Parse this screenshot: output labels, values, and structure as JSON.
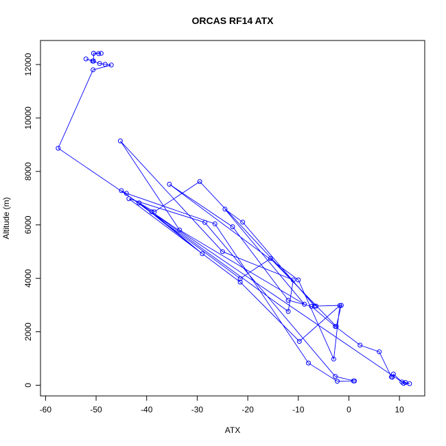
{
  "chart_data": {
    "type": "scatter",
    "title": "ORCAS RF14 ATX",
    "xlabel": "ATX",
    "ylabel": "Altitude (m)",
    "xlim": [
      -61,
      15
    ],
    "ylim": [
      -400,
      12900
    ],
    "xticks": [
      -60,
      -50,
      -40,
      -30,
      -20,
      -10,
      0,
      10
    ],
    "yticks": [
      0,
      2000,
      4000,
      6000,
      8000,
      10000,
      12000
    ],
    "grid": false,
    "legend": "none",
    "series_color": "#0000ff",
    "series": [
      {
        "x": [
          -50.5,
          -49.5,
          -49.0,
          -50.5,
          -50.5,
          -52.0,
          -50.7,
          -49.3,
          -48.2,
          -47.0,
          -50.6,
          -57.5,
          10.5,
          11.2,
          12.0,
          10.8,
          8.8,
          8.6,
          8.4,
          6.0,
          2.2,
          -2.7,
          -7.4,
          -12.0,
          -23.0,
          -35.5,
          -10.0,
          -3.0,
          -1.8,
          -9.8,
          -21.5,
          -43.5,
          -28.5,
          -2.7,
          1.1,
          0.9,
          -2.3,
          -8.0,
          -26.5,
          -44.0,
          -45.0,
          -21.5,
          -15.5,
          -2.5,
          -1.5,
          -6.5,
          -29.5,
          -38.5,
          -41.5,
          -29.0,
          -39.0,
          -12.0,
          -11.0,
          -25.0,
          -45.2,
          -33.5,
          -8.8,
          -24.5,
          -21.0,
          -6.8
        ],
        "y": [
          12420,
          12410,
          12420,
          12420,
          12130,
          12210,
          12130,
          12040,
          12010,
          11980,
          11800,
          8870,
          120,
          100,
          60,
          70,
          420,
          300,
          310,
          1250,
          1500,
          2200,
          2950,
          3180,
          5930,
          7520,
          3940,
          980,
          2980,
          1640,
          3860,
          6980,
          6090,
          330,
          160,
          160,
          150,
          830,
          6040,
          7180,
          7280,
          3990,
          4740,
          2200,
          2990,
          2960,
          7620,
          6490,
          6820,
          4920,
          6490,
          2760,
          3940,
          5000,
          9140,
          5810,
          3030,
          6590,
          6100,
          2960
        ]
      }
    ]
  }
}
